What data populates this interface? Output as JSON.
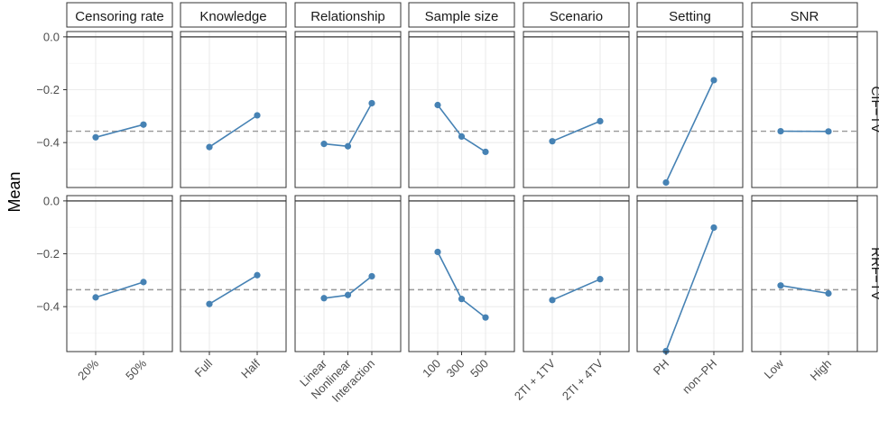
{
  "chart_data": {
    "type": "line",
    "ylabel": "Mean",
    "ylim": [
      -0.57,
      0.02
    ],
    "yticks": [
      0.0,
      -0.2,
      -0.4
    ],
    "ytick_labels": [
      "0.0",
      "−0.2",
      "−0.4"
    ],
    "zero_line": 0.0,
    "grid": true,
    "colors": {
      "line": "#4682b4",
      "point": "#4682b4",
      "reference": "#999999",
      "zero": "#555555"
    },
    "facets_x": [
      {
        "name": "Censoring rate",
        "categories": [
          "20%",
          "50%"
        ]
      },
      {
        "name": "Knowledge",
        "categories": [
          "Full",
          "Half"
        ]
      },
      {
        "name": "Relationship",
        "categories": [
          "Linear",
          "Nonlinear",
          "Interaction"
        ]
      },
      {
        "name": "Sample size",
        "categories": [
          "100",
          "300",
          "500"
        ]
      },
      {
        "name": "Scenario",
        "categories": [
          "2TI + 1TV",
          "2TI + 4TV"
        ]
      },
      {
        "name": "Setting",
        "categories": [
          "PH",
          "non−PH"
        ]
      },
      {
        "name": "SNR",
        "categories": [
          "Low",
          "High"
        ]
      }
    ],
    "facets_y": [
      {
        "name": "CIF−TV",
        "reference": -0.357,
        "values": [
          [
            -0.38,
            -0.332
          ],
          [
            -0.417,
            -0.297
          ],
          [
            -0.405,
            -0.414,
            -0.251
          ],
          [
            -0.258,
            -0.377,
            -0.435
          ],
          [
            -0.395,
            -0.319
          ],
          [
            -0.551,
            -0.164
          ],
          [
            -0.357,
            -0.358
          ]
        ]
      },
      {
        "name": "RRF−TV",
        "reference": -0.336,
        "values": [
          [
            -0.365,
            -0.307
          ],
          [
            -0.39,
            -0.281
          ],
          [
            -0.368,
            -0.356,
            -0.285
          ],
          [
            -0.193,
            -0.371,
            -0.441
          ],
          [
            -0.375,
            -0.296
          ],
          [
            -0.568,
            -0.101
          ],
          [
            -0.32,
            -0.35
          ]
        ]
      }
    ]
  }
}
